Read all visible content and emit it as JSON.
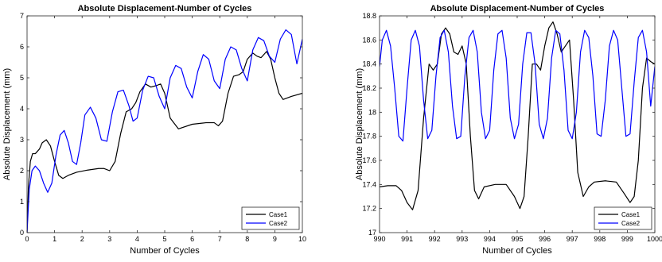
{
  "chart_data": [
    {
      "type": "line",
      "title": "Absolute Displacement-Number of Cycles",
      "xlabel": "Number of Cycles",
      "ylabel": "Absolute Displacement (mm)",
      "xlim": [
        0,
        10
      ],
      "ylim": [
        0,
        7
      ],
      "xticks": [
        0,
        1,
        2,
        3,
        4,
        5,
        6,
        7,
        8,
        9,
        10
      ],
      "yticks": [
        0,
        1,
        2,
        3,
        4,
        5,
        6,
        7
      ],
      "grid": false,
      "legend_position": "bottom-right",
      "series": [
        {
          "name": "Case1",
          "color": "#000000",
          "x": [
            0,
            0.05,
            0.12,
            0.2,
            0.3,
            0.45,
            0.55,
            0.7,
            0.85,
            1.0,
            1.15,
            1.3,
            1.5,
            1.8,
            2.2,
            2.6,
            2.8,
            3.0,
            3.2,
            3.4,
            3.6,
            3.8,
            3.95,
            4.1,
            4.3,
            4.5,
            4.7,
            4.85,
            5.0,
            5.2,
            5.5,
            6.0,
            6.5,
            6.8,
            6.95,
            7.1,
            7.3,
            7.5,
            7.7,
            7.85,
            8.0,
            8.2,
            8.35,
            8.5,
            8.7,
            8.85,
            9.0,
            9.15,
            9.3,
            9.6,
            10.0
          ],
          "y": [
            0,
            1.5,
            2.3,
            2.55,
            2.55,
            2.7,
            2.9,
            3.0,
            2.8,
            2.3,
            1.85,
            1.75,
            1.85,
            1.95,
            2.02,
            2.07,
            2.07,
            2.0,
            2.3,
            3.2,
            3.9,
            4.0,
            4.2,
            4.55,
            4.8,
            4.7,
            4.75,
            4.8,
            4.5,
            3.7,
            3.35,
            3.5,
            3.55,
            3.55,
            3.45,
            3.6,
            4.5,
            5.05,
            5.1,
            5.2,
            5.6,
            5.8,
            5.7,
            5.65,
            5.85,
            5.6,
            5.0,
            4.5,
            4.3,
            4.4,
            4.5
          ]
        },
        {
          "name": "Case2",
          "color": "#0000ff",
          "x": [
            0,
            0.08,
            0.18,
            0.3,
            0.45,
            0.6,
            0.75,
            0.9,
            1.05,
            1.2,
            1.35,
            1.5,
            1.65,
            1.8,
            1.95,
            2.1,
            2.3,
            2.5,
            2.7,
            2.9,
            3.1,
            3.3,
            3.5,
            3.7,
            3.85,
            4.0,
            4.2,
            4.4,
            4.6,
            4.8,
            5.0,
            5.2,
            5.4,
            5.6,
            5.8,
            6.0,
            6.2,
            6.4,
            6.6,
            6.8,
            7.0,
            7.2,
            7.4,
            7.6,
            7.8,
            8.0,
            8.2,
            8.4,
            8.6,
            8.8,
            9.0,
            9.2,
            9.4,
            9.6,
            9.8,
            10.0
          ],
          "y": [
            0,
            1.4,
            2.0,
            2.15,
            2.0,
            1.6,
            1.3,
            1.6,
            2.5,
            3.15,
            3.3,
            2.9,
            2.3,
            2.2,
            2.9,
            3.8,
            4.05,
            3.7,
            3.0,
            2.95,
            3.9,
            4.55,
            4.6,
            4.1,
            3.6,
            3.7,
            4.6,
            5.05,
            5.0,
            4.4,
            4.0,
            5.0,
            5.4,
            5.3,
            4.7,
            4.35,
            5.2,
            5.75,
            5.6,
            4.9,
            4.65,
            5.6,
            6.0,
            5.9,
            5.3,
            4.9,
            5.9,
            6.3,
            6.2,
            5.7,
            5.5,
            6.25,
            6.55,
            6.4,
            5.45,
            6.25
          ]
        }
      ]
    },
    {
      "type": "line",
      "title": "Absolute Displacement-Number of Cycles",
      "xlabel": "Number of Cycles",
      "ylabel": "Absolute Displacement (mm)",
      "xlim": [
        990,
        1000
      ],
      "ylim": [
        17,
        18.8
      ],
      "xticks": [
        990,
        991,
        992,
        993,
        994,
        995,
        996,
        997,
        998,
        999,
        1000
      ],
      "yticks": [
        17,
        17.2,
        17.4,
        17.6,
        17.8,
        18,
        18.2,
        18.4,
        18.6,
        18.8
      ],
      "ytick_labels": [
        "17",
        "17.2",
        "17.4",
        "17.6",
        "17.8",
        "18",
        "18.2",
        "18.4",
        "18.6",
        "18.8"
      ],
      "grid": false,
      "legend_position": "bottom-right",
      "series": [
        {
          "name": "Case1",
          "color": "#000000",
          "x": [
            990,
            990.3,
            990.6,
            990.8,
            991.0,
            991.2,
            991.4,
            991.6,
            991.8,
            991.95,
            992.1,
            992.25,
            992.4,
            992.55,
            992.7,
            992.85,
            993.0,
            993.15,
            993.3,
            993.45,
            993.6,
            993.8,
            994.2,
            994.6,
            994.9,
            995.1,
            995.25,
            995.4,
            995.55,
            995.7,
            995.85,
            996.0,
            996.15,
            996.3,
            996.45,
            996.6,
            996.75,
            996.9,
            997.05,
            997.2,
            997.4,
            997.6,
            997.8,
            998.2,
            998.6,
            998.9,
            999.1,
            999.25,
            999.4,
            999.55,
            999.7,
            999.85,
            1000
          ],
          "y": [
            17.38,
            17.39,
            17.39,
            17.35,
            17.25,
            17.19,
            17.35,
            17.95,
            18.4,
            18.35,
            18.4,
            18.65,
            18.7,
            18.65,
            18.5,
            18.48,
            18.55,
            18.4,
            17.8,
            17.35,
            17.28,
            17.38,
            17.4,
            17.4,
            17.3,
            17.2,
            17.3,
            17.8,
            18.4,
            18.4,
            18.35,
            18.55,
            18.7,
            18.75,
            18.65,
            18.5,
            18.55,
            18.6,
            18.1,
            17.5,
            17.3,
            17.38,
            17.42,
            17.43,
            17.42,
            17.32,
            17.25,
            17.3,
            17.6,
            18.2,
            18.45,
            18.42,
            18.4
          ]
        },
        {
          "name": "Case2",
          "color": "#0000ff",
          "x": [
            990,
            990.1,
            990.25,
            990.4,
            990.55,
            990.7,
            990.85,
            991.0,
            991.15,
            991.3,
            991.45,
            991.6,
            991.75,
            991.9,
            992.05,
            992.2,
            992.35,
            992.5,
            992.65,
            992.8,
            992.95,
            993.1,
            993.25,
            993.4,
            993.55,
            993.7,
            993.85,
            994.0,
            994.15,
            994.3,
            994.45,
            994.6,
            994.75,
            994.9,
            995.05,
            995.2,
            995.35,
            995.5,
            995.65,
            995.8,
            995.95,
            996.1,
            996.25,
            996.4,
            996.55,
            996.7,
            996.85,
            997.0,
            997.15,
            997.3,
            997.45,
            997.6,
            997.75,
            997.9,
            998.05,
            998.2,
            998.35,
            998.5,
            998.65,
            998.8,
            998.95,
            999.1,
            999.25,
            999.4,
            999.55,
            999.7,
            999.85,
            1000
          ],
          "y": [
            18.38,
            18.6,
            18.68,
            18.55,
            18.2,
            17.8,
            17.76,
            18.2,
            18.6,
            18.68,
            18.55,
            18.1,
            17.78,
            17.85,
            18.3,
            18.62,
            18.68,
            18.5,
            18.05,
            17.78,
            17.8,
            18.3,
            18.62,
            18.68,
            18.5,
            18.0,
            17.78,
            17.85,
            18.35,
            18.65,
            18.68,
            18.45,
            17.95,
            17.78,
            17.9,
            18.4,
            18.66,
            18.66,
            18.4,
            17.9,
            17.78,
            17.95,
            18.45,
            18.68,
            18.65,
            18.35,
            17.85,
            17.78,
            18.0,
            18.5,
            18.68,
            18.62,
            18.3,
            17.82,
            17.8,
            18.1,
            18.55,
            18.68,
            18.6,
            18.2,
            17.8,
            17.82,
            18.25,
            18.62,
            18.68,
            18.5,
            18.05,
            18.38
          ]
        }
      ]
    }
  ]
}
